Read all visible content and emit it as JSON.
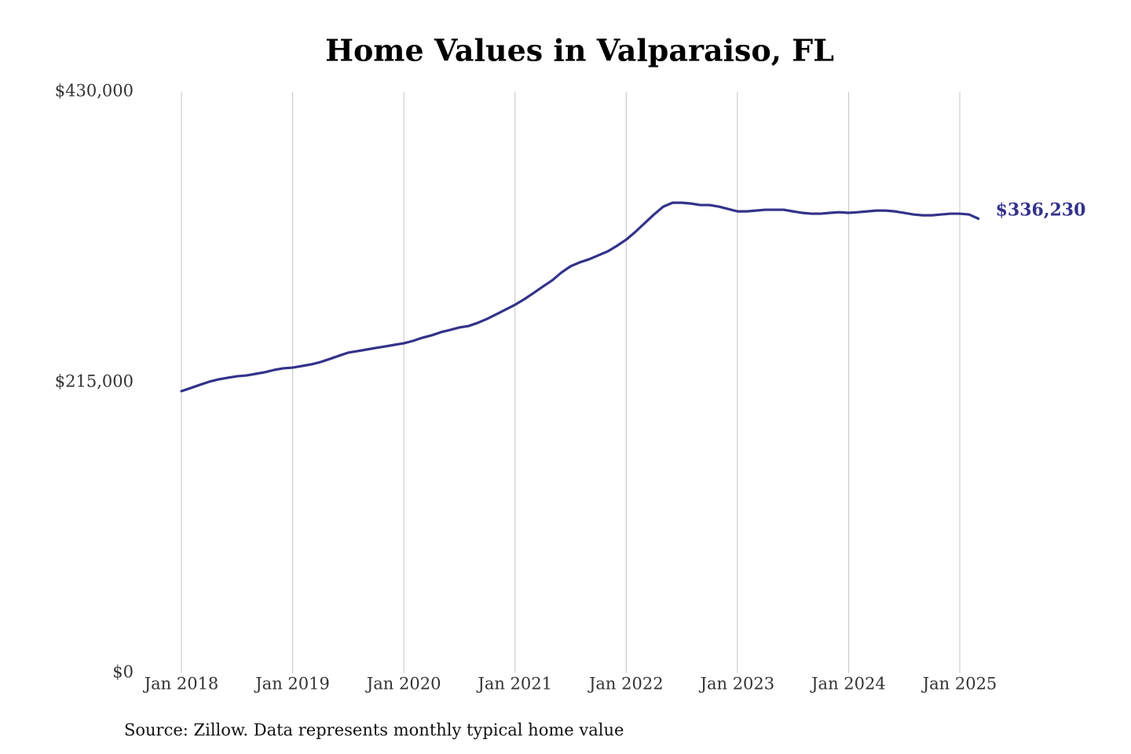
{
  "chart_data": {
    "type": "line",
    "title": "Home Values in Valparaiso, FL",
    "source": "Source: Zillow. Data represents monthly typical home value",
    "x": [
      "2018-01",
      "2018-02",
      "2018-03",
      "2018-04",
      "2018-05",
      "2018-06",
      "2018-07",
      "2018-08",
      "2018-09",
      "2018-10",
      "2018-11",
      "2018-12",
      "2019-01",
      "2019-02",
      "2019-03",
      "2019-04",
      "2019-05",
      "2019-06",
      "2019-07",
      "2019-08",
      "2019-09",
      "2019-10",
      "2019-11",
      "2019-12",
      "2020-01",
      "2020-02",
      "2020-03",
      "2020-04",
      "2020-05",
      "2020-06",
      "2020-07",
      "2020-08",
      "2020-09",
      "2020-10",
      "2020-11",
      "2020-12",
      "2021-01",
      "2021-02",
      "2021-03",
      "2021-04",
      "2021-05",
      "2021-06",
      "2021-07",
      "2021-08",
      "2021-09",
      "2021-10",
      "2021-11",
      "2021-12",
      "2022-01",
      "2022-02",
      "2022-03",
      "2022-04",
      "2022-05",
      "2022-06",
      "2022-07",
      "2022-08",
      "2022-09",
      "2022-10",
      "2022-11",
      "2022-12",
      "2023-01",
      "2023-02",
      "2023-03",
      "2023-04",
      "2023-05",
      "2023-06",
      "2023-07",
      "2023-08",
      "2023-09",
      "2023-10",
      "2023-11",
      "2023-12",
      "2024-01",
      "2024-02",
      "2024-03",
      "2024-04",
      "2024-05",
      "2024-06",
      "2024-07",
      "2024-08",
      "2024-09",
      "2024-10",
      "2024-11",
      "2024-12",
      "2025-01",
      "2025-02",
      "2025-03"
    ],
    "series": [
      {
        "name": "Home value",
        "color": "#33328a",
        "values": [
          208600,
          210900,
          213300,
          215600,
          217300,
          218500,
          219600,
          220200,
          221400,
          222600,
          224300,
          225500,
          226000,
          227200,
          228400,
          230100,
          232400,
          234800,
          237100,
          238200,
          239400,
          240600,
          241700,
          242900,
          244000,
          245800,
          248100,
          249900,
          252200,
          253900,
          255700,
          256800,
          259200,
          262100,
          265500,
          269000,
          272500,
          276600,
          281200,
          285900,
          290500,
          296300,
          301000,
          303900,
          306200,
          309100,
          312000,
          316100,
          320700,
          326500,
          332900,
          339300,
          345100,
          348000,
          348000,
          347400,
          346300,
          346300,
          345100,
          343400,
          341600,
          341600,
          342200,
          342800,
          342800,
          342800,
          341600,
          340500,
          339900,
          339900,
          340500,
          341000,
          340500,
          341000,
          341600,
          342200,
          342200,
          341600,
          340500,
          339300,
          338700,
          338700,
          339300,
          339900,
          339900,
          339300,
          336230
        ],
        "value_labels": [
          null,
          null,
          null,
          null,
          null,
          null,
          null,
          null,
          null,
          null,
          null,
          null,
          null,
          null,
          null,
          null,
          null,
          null,
          null,
          null,
          null,
          null,
          null,
          null,
          null,
          null,
          null,
          null,
          null,
          null,
          null,
          null,
          null,
          null,
          null,
          null,
          null,
          null,
          null,
          null,
          null,
          null,
          null,
          null,
          null,
          null,
          null,
          null,
          null,
          null,
          null,
          null,
          null,
          null,
          null,
          null,
          null,
          null,
          null,
          null,
          null,
          null,
          null,
          null,
          null,
          null,
          null,
          null,
          null,
          null,
          null,
          null,
          null,
          null,
          null,
          null,
          null,
          null,
          null,
          null,
          null,
          null,
          null,
          null,
          null,
          null,
          "$336,230"
        ]
      }
    ],
    "xlim": [
      "2018-01",
      "2025-03"
    ],
    "xticks": [
      {
        "value": "2018-01",
        "label": "Jan 2018"
      },
      {
        "value": "2019-01",
        "label": "Jan 2019"
      },
      {
        "value": "2020-01",
        "label": "Jan 2020"
      },
      {
        "value": "2021-01",
        "label": "Jan 2021"
      },
      {
        "value": "2022-01",
        "label": "Jan 2022"
      },
      {
        "value": "2023-01",
        "label": "Jan 2023"
      },
      {
        "value": "2024-01",
        "label": "Jan 2024"
      },
      {
        "value": "2025-01",
        "label": "Jan 2025"
      }
    ],
    "ylim": [
      0,
      430000
    ],
    "yticks": [
      {
        "value": 0,
        "label": "$0"
      },
      {
        "value": 215000,
        "label": "$215,000"
      },
      {
        "value": 430000,
        "label": "$430,000"
      }
    ],
    "grid": "x"
  }
}
